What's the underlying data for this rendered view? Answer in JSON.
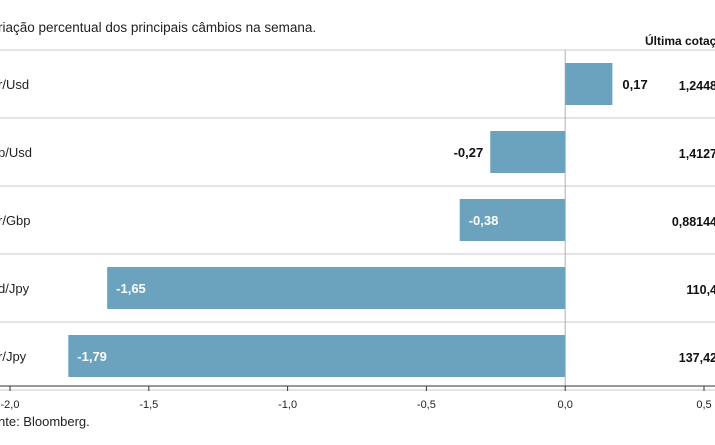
{
  "chart_data": {
    "type": "bar",
    "orientation": "horizontal",
    "title": "riação percentual dos principais câmbios na semana.",
    "column_header": "Última cotaç",
    "categories": [
      "r/Usd",
      "p/Usd",
      "r/Gbp",
      "d/Jpy",
      "r/Jpy"
    ],
    "values": [
      0.17,
      -0.27,
      -0.38,
      -1.65,
      -1.79
    ],
    "value_labels": [
      "0,17",
      "-0,27",
      "-0,38",
      "-1,65",
      "-1,79"
    ],
    "last_quotes": [
      "1,2448",
      "1,4127",
      "0,88144",
      "110,4",
      "137,42"
    ],
    "x_ticks": [
      -2.0,
      -1.5,
      -1.0,
      -0.5,
      0.0,
      0.5
    ],
    "x_tick_labels": [
      "-2,0",
      "-1,5",
      "-1,0",
      "-0,5",
      "0,0",
      "0,5"
    ],
    "xlim": [
      -2.0,
      0.5
    ],
    "bar_color": "#6ba3bf",
    "source": "nte: Bloomberg."
  }
}
